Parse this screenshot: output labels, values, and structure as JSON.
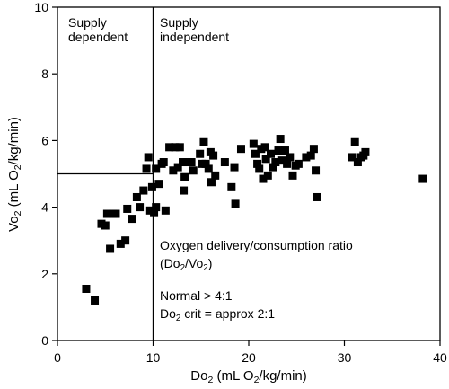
{
  "chart_data": {
    "type": "scatter",
    "title": "",
    "xlabel_parts": [
      {
        "text": "Do"
      },
      {
        "text": "2",
        "sub": true
      },
      {
        "text": " (mL O"
      },
      {
        "text": "2",
        "sub": true
      },
      {
        "text": "/kg/min)"
      }
    ],
    "ylabel_parts": [
      {
        "text": "Vo"
      },
      {
        "text": "2",
        "sub": true
      },
      {
        "text": " (mL O"
      },
      {
        "text": "2",
        "sub": true
      },
      {
        "text": "/kg/min)"
      }
    ],
    "xlim": [
      0,
      40
    ],
    "ylim": [
      0,
      10
    ],
    "x_ticks": [
      0,
      10,
      20,
      30,
      40
    ],
    "y_ticks": [
      0,
      2,
      4,
      6,
      8,
      10
    ],
    "grid": false,
    "reference_lines": [
      {
        "orientation": "vertical",
        "x": 10,
        "y_from": 0,
        "y_to": 10
      },
      {
        "orientation": "horizontal",
        "y": 5,
        "x_from": 0,
        "x_to": 10
      }
    ],
    "region_labels": [
      {
        "lines": [
          "Supply",
          "dependent"
        ],
        "region": "left"
      },
      {
        "lines": [
          "Supply",
          "independent"
        ],
        "region": "right"
      }
    ],
    "annotation": {
      "line1": "Oxygen delivery/consumption ratio",
      "line2_parts": [
        {
          "text": "(Do"
        },
        {
          "text": "2",
          "sub": true
        },
        {
          "text": "/Vo"
        },
        {
          "text": "2",
          "sub": true
        },
        {
          "text": ")"
        }
      ],
      "line3": "Normal > 4:1",
      "line4_parts": [
        {
          "text": "Do"
        },
        {
          "text": "2",
          "sub": true
        },
        {
          "text": " crit = approx 2:1"
        }
      ]
    },
    "points": [
      [
        3.0,
        1.55
      ],
      [
        3.9,
        1.2
      ],
      [
        4.6,
        3.5
      ],
      [
        5.0,
        3.45
      ],
      [
        5.2,
        3.8
      ],
      [
        5.5,
        2.75
      ],
      [
        5.8,
        3.8
      ],
      [
        6.1,
        3.8
      ],
      [
        6.6,
        2.9
      ],
      [
        7.1,
        3.0
      ],
      [
        7.3,
        3.95
      ],
      [
        7.8,
        3.65
      ],
      [
        8.3,
        4.3
      ],
      [
        8.6,
        4.0
      ],
      [
        9.0,
        4.5
      ],
      [
        9.3,
        5.15
      ],
      [
        9.5,
        5.5
      ],
      [
        9.7,
        3.9
      ],
      [
        9.9,
        4.6
      ],
      [
        10.1,
        3.85
      ],
      [
        10.3,
        5.15
      ],
      [
        10.3,
        4.0
      ],
      [
        10.6,
        4.7
      ],
      [
        10.9,
        5.3
      ],
      [
        11.1,
        5.35
      ],
      [
        11.3,
        3.9
      ],
      [
        11.7,
        5.8
      ],
      [
        12.1,
        5.1
      ],
      [
        12.3,
        5.8
      ],
      [
        12.6,
        5.2
      ],
      [
        12.8,
        5.8
      ],
      [
        13.1,
        5.35
      ],
      [
        13.2,
        4.5
      ],
      [
        13.3,
        4.9
      ],
      [
        13.6,
        5.35
      ],
      [
        14.0,
        5.35
      ],
      [
        14.2,
        5.1
      ],
      [
        14.9,
        5.6
      ],
      [
        15.1,
        5.3
      ],
      [
        15.3,
        5.95
      ],
      [
        15.5,
        5.3
      ],
      [
        15.8,
        5.15
      ],
      [
        16.0,
        5.65
      ],
      [
        16.1,
        4.75
      ],
      [
        16.3,
        5.55
      ],
      [
        16.5,
        4.95
      ],
      [
        17.5,
        5.35
      ],
      [
        18.2,
        4.6
      ],
      [
        18.5,
        5.2
      ],
      [
        18.6,
        4.1
      ],
      [
        19.2,
        5.75
      ],
      [
        20.5,
        5.9
      ],
      [
        20.7,
        5.6
      ],
      [
        20.9,
        5.3
      ],
      [
        21.1,
        5.15
      ],
      [
        21.3,
        5.75
      ],
      [
        21.5,
        4.85
      ],
      [
        21.7,
        5.8
      ],
      [
        21.8,
        5.45
      ],
      [
        22.0,
        4.95
      ],
      [
        22.3,
        5.6
      ],
      [
        22.5,
        5.2
      ],
      [
        22.8,
        5.35
      ],
      [
        23.1,
        5.7
      ],
      [
        23.3,
        6.05
      ],
      [
        23.5,
        5.4
      ],
      [
        23.8,
        5.7
      ],
      [
        24.0,
        5.3
      ],
      [
        24.3,
        5.5
      ],
      [
        24.6,
        4.95
      ],
      [
        24.9,
        5.25
      ],
      [
        25.2,
        5.3
      ],
      [
        26.0,
        5.5
      ],
      [
        26.5,
        5.55
      ],
      [
        26.8,
        5.75
      ],
      [
        27.0,
        5.1
      ],
      [
        27.1,
        4.3
      ],
      [
        30.8,
        5.5
      ],
      [
        31.1,
        5.95
      ],
      [
        31.4,
        5.35
      ],
      [
        31.7,
        5.5
      ],
      [
        32.0,
        5.55
      ],
      [
        32.2,
        5.65
      ],
      [
        38.2,
        4.85
      ]
    ]
  }
}
